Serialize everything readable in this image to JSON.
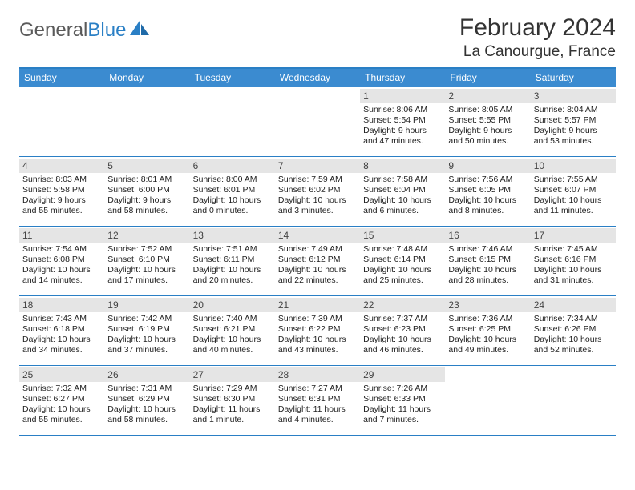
{
  "brand": {
    "part1": "General",
    "part2": "Blue"
  },
  "title": "February 2024",
  "location": "La Canourgue, France",
  "colors": {
    "header_bg": "#3b8bd0",
    "rule": "#2a7fc5",
    "daynum_bg": "#e5e5e5",
    "text": "#222222",
    "title_text": "#333333",
    "logo_gray": "#5a5a5a",
    "logo_blue": "#2a7fc5",
    "white": "#ffffff"
  },
  "typography": {
    "title_fontsize": 30,
    "location_fontsize": 19,
    "dayhead_fontsize": 12,
    "daynum_fontsize": 12,
    "entry_fontsize": 10.5
  },
  "layout": {
    "columns": 7,
    "rows": 5,
    "cell_min_height": 86
  },
  "day_headers": [
    "Sunday",
    "Monday",
    "Tuesday",
    "Wednesday",
    "Thursday",
    "Friday",
    "Saturday"
  ],
  "weeks": [
    [
      {
        "n": "",
        "sr": "",
        "ss": "",
        "dl": ""
      },
      {
        "n": "",
        "sr": "",
        "ss": "",
        "dl": ""
      },
      {
        "n": "",
        "sr": "",
        "ss": "",
        "dl": ""
      },
      {
        "n": "",
        "sr": "",
        "ss": "",
        "dl": ""
      },
      {
        "n": "1",
        "sr": "Sunrise: 8:06 AM",
        "ss": "Sunset: 5:54 PM",
        "dl": "Daylight: 9 hours and 47 minutes."
      },
      {
        "n": "2",
        "sr": "Sunrise: 8:05 AM",
        "ss": "Sunset: 5:55 PM",
        "dl": "Daylight: 9 hours and 50 minutes."
      },
      {
        "n": "3",
        "sr": "Sunrise: 8:04 AM",
        "ss": "Sunset: 5:57 PM",
        "dl": "Daylight: 9 hours and 53 minutes."
      }
    ],
    [
      {
        "n": "4",
        "sr": "Sunrise: 8:03 AM",
        "ss": "Sunset: 5:58 PM",
        "dl": "Daylight: 9 hours and 55 minutes."
      },
      {
        "n": "5",
        "sr": "Sunrise: 8:01 AM",
        "ss": "Sunset: 6:00 PM",
        "dl": "Daylight: 9 hours and 58 minutes."
      },
      {
        "n": "6",
        "sr": "Sunrise: 8:00 AM",
        "ss": "Sunset: 6:01 PM",
        "dl": "Daylight: 10 hours and 0 minutes."
      },
      {
        "n": "7",
        "sr": "Sunrise: 7:59 AM",
        "ss": "Sunset: 6:02 PM",
        "dl": "Daylight: 10 hours and 3 minutes."
      },
      {
        "n": "8",
        "sr": "Sunrise: 7:58 AM",
        "ss": "Sunset: 6:04 PM",
        "dl": "Daylight: 10 hours and 6 minutes."
      },
      {
        "n": "9",
        "sr": "Sunrise: 7:56 AM",
        "ss": "Sunset: 6:05 PM",
        "dl": "Daylight: 10 hours and 8 minutes."
      },
      {
        "n": "10",
        "sr": "Sunrise: 7:55 AM",
        "ss": "Sunset: 6:07 PM",
        "dl": "Daylight: 10 hours and 11 minutes."
      }
    ],
    [
      {
        "n": "11",
        "sr": "Sunrise: 7:54 AM",
        "ss": "Sunset: 6:08 PM",
        "dl": "Daylight: 10 hours and 14 minutes."
      },
      {
        "n": "12",
        "sr": "Sunrise: 7:52 AM",
        "ss": "Sunset: 6:10 PM",
        "dl": "Daylight: 10 hours and 17 minutes."
      },
      {
        "n": "13",
        "sr": "Sunrise: 7:51 AM",
        "ss": "Sunset: 6:11 PM",
        "dl": "Daylight: 10 hours and 20 minutes."
      },
      {
        "n": "14",
        "sr": "Sunrise: 7:49 AM",
        "ss": "Sunset: 6:12 PM",
        "dl": "Daylight: 10 hours and 22 minutes."
      },
      {
        "n": "15",
        "sr": "Sunrise: 7:48 AM",
        "ss": "Sunset: 6:14 PM",
        "dl": "Daylight: 10 hours and 25 minutes."
      },
      {
        "n": "16",
        "sr": "Sunrise: 7:46 AM",
        "ss": "Sunset: 6:15 PM",
        "dl": "Daylight: 10 hours and 28 minutes."
      },
      {
        "n": "17",
        "sr": "Sunrise: 7:45 AM",
        "ss": "Sunset: 6:16 PM",
        "dl": "Daylight: 10 hours and 31 minutes."
      }
    ],
    [
      {
        "n": "18",
        "sr": "Sunrise: 7:43 AM",
        "ss": "Sunset: 6:18 PM",
        "dl": "Daylight: 10 hours and 34 minutes."
      },
      {
        "n": "19",
        "sr": "Sunrise: 7:42 AM",
        "ss": "Sunset: 6:19 PM",
        "dl": "Daylight: 10 hours and 37 minutes."
      },
      {
        "n": "20",
        "sr": "Sunrise: 7:40 AM",
        "ss": "Sunset: 6:21 PM",
        "dl": "Daylight: 10 hours and 40 minutes."
      },
      {
        "n": "21",
        "sr": "Sunrise: 7:39 AM",
        "ss": "Sunset: 6:22 PM",
        "dl": "Daylight: 10 hours and 43 minutes."
      },
      {
        "n": "22",
        "sr": "Sunrise: 7:37 AM",
        "ss": "Sunset: 6:23 PM",
        "dl": "Daylight: 10 hours and 46 minutes."
      },
      {
        "n": "23",
        "sr": "Sunrise: 7:36 AM",
        "ss": "Sunset: 6:25 PM",
        "dl": "Daylight: 10 hours and 49 minutes."
      },
      {
        "n": "24",
        "sr": "Sunrise: 7:34 AM",
        "ss": "Sunset: 6:26 PM",
        "dl": "Daylight: 10 hours and 52 minutes."
      }
    ],
    [
      {
        "n": "25",
        "sr": "Sunrise: 7:32 AM",
        "ss": "Sunset: 6:27 PM",
        "dl": "Daylight: 10 hours and 55 minutes."
      },
      {
        "n": "26",
        "sr": "Sunrise: 7:31 AM",
        "ss": "Sunset: 6:29 PM",
        "dl": "Daylight: 10 hours and 58 minutes."
      },
      {
        "n": "27",
        "sr": "Sunrise: 7:29 AM",
        "ss": "Sunset: 6:30 PM",
        "dl": "Daylight: 11 hours and 1 minute."
      },
      {
        "n": "28",
        "sr": "Sunrise: 7:27 AM",
        "ss": "Sunset: 6:31 PM",
        "dl": "Daylight: 11 hours and 4 minutes."
      },
      {
        "n": "29",
        "sr": "Sunrise: 7:26 AM",
        "ss": "Sunset: 6:33 PM",
        "dl": "Daylight: 11 hours and 7 minutes."
      },
      {
        "n": "",
        "sr": "",
        "ss": "",
        "dl": ""
      },
      {
        "n": "",
        "sr": "",
        "ss": "",
        "dl": ""
      }
    ]
  ]
}
